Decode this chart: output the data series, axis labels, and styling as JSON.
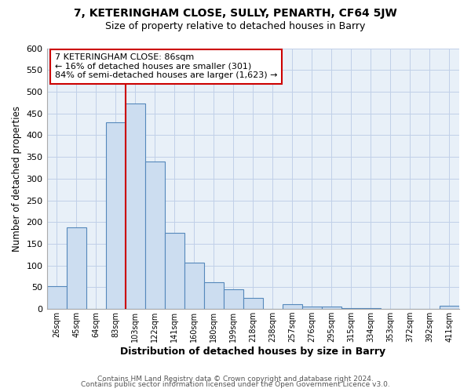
{
  "title1": "7, KETERINGHAM CLOSE, SULLY, PENARTH, CF64 5JW",
  "title2": "Size of property relative to detached houses in Barry",
  "xlabel": "Distribution of detached houses by size in Barry",
  "ylabel": "Number of detached properties",
  "bar_labels": [
    "26sqm",
    "45sqm",
    "64sqm",
    "83sqm",
    "103sqm",
    "122sqm",
    "141sqm",
    "160sqm",
    "180sqm",
    "199sqm",
    "218sqm",
    "238sqm",
    "257sqm",
    "276sqm",
    "295sqm",
    "315sqm",
    "334sqm",
    "353sqm",
    "372sqm",
    "392sqm",
    "411sqm"
  ],
  "bar_values": [
    53,
    187,
    0,
    430,
    472,
    340,
    175,
    107,
    62,
    46,
    25,
    0,
    12,
    5,
    5,
    3,
    2,
    1,
    0,
    0,
    7
  ],
  "bar_color": "#ccddf0",
  "bar_edge_color": "#5588bb",
  "vline_x_idx": 3,
  "vline_color": "#cc0000",
  "annotation_title": "7 KETERINGHAM CLOSE: 86sqm",
  "annotation_line1": "← 16% of detached houses are smaller (301)",
  "annotation_line2": "84% of semi-detached houses are larger (1,623) →",
  "annotation_box_color": "#ffffff",
  "annotation_box_edge": "#cc0000",
  "ylim": [
    0,
    600
  ],
  "yticks": [
    0,
    50,
    100,
    150,
    200,
    250,
    300,
    350,
    400,
    450,
    500,
    550,
    600
  ],
  "footer1": "Contains HM Land Registry data © Crown copyright and database right 2024.",
  "footer2": "Contains public sector information licensed under the Open Government Licence v3.0.",
  "bg_color": "#ffffff",
  "grid_color": "#c0d0e8"
}
